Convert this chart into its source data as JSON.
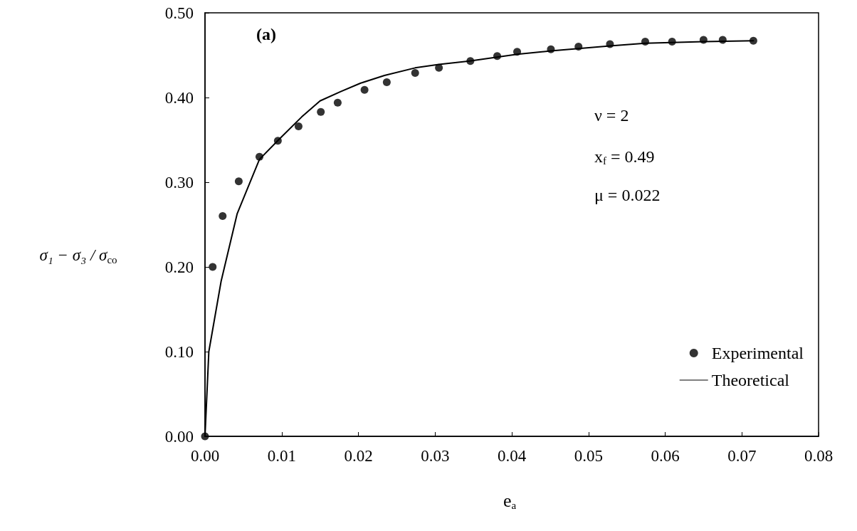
{
  "chart_data": {
    "type": "scatter",
    "xlabel": "e$_{a}$",
    "ylabel": "σ₁ − σ₃ / σ$_{co}$",
    "xlim": [
      0,
      0.08
    ],
    "xticks": [
      {
        "value": 0,
        "label": "0.00"
      },
      {
        "value": 0.01,
        "label": "0.01"
      },
      {
        "value": 0.02,
        "label": "0.02"
      },
      {
        "value": 0.03,
        "label": "0.03"
      },
      {
        "value": 0.04,
        "label": "0.04"
      },
      {
        "value": 0.05,
        "label": "0.05"
      },
      {
        "value": 0.06,
        "label": "0.06"
      },
      {
        "value": 0.07,
        "label": "0.07"
      },
      {
        "value": 0.08,
        "label": "0.08"
      }
    ],
    "ylim": [
      0,
      0.5
    ],
    "yticks": [
      {
        "value": 0,
        "label": "0.00"
      },
      {
        "value": 0.1,
        "label": "0.10"
      },
      {
        "value": 0.2,
        "label": "0.20"
      },
      {
        "value": 0.3,
        "label": "0.30"
      },
      {
        "value": 0.4,
        "label": "0.40"
      },
      {
        "value": 0.5,
        "label": "0.50"
      }
    ],
    "grid": false,
    "legend": "bottom right",
    "annotations": [
      "(a)",
      "ν = 2",
      "x$_{f}$ = 0.49",
      "μ = 0.022"
    ],
    "series": [
      {
        "name": "Experimental",
        "type": "scatter",
        "marker": "circle",
        "color": "#000000",
        "x": [
          0,
          0.001,
          0.0023,
          0.0044,
          0.0071,
          0.0095,
          0.0122,
          0.0151,
          0.0173,
          0.0208,
          0.0237,
          0.0274,
          0.0305,
          0.0346,
          0.0381,
          0.0407,
          0.0451,
          0.0487,
          0.0528,
          0.0574,
          0.0609,
          0.065,
          0.0675,
          0.0715
        ],
        "values": [
          0,
          0.2,
          0.26,
          0.301,
          0.33,
          0.349,
          0.366,
          0.383,
          0.394,
          0.409,
          0.418,
          0.429,
          0.435,
          0.443,
          0.449,
          0.454,
          0.457,
          0.46,
          0.463,
          0.466,
          0.466,
          0.468,
          0.468,
          0.467
        ]
      },
      {
        "name": "Theoretical",
        "type": "line",
        "marker": "none",
        "line_style": "solid",
        "color": "#000000",
        "x": [
          0,
          0.0005,
          0.0021,
          0.0042,
          0.0071,
          0.0097,
          0.0126,
          0.015,
          0.0177,
          0.0203,
          0.0234,
          0.0274,
          0.0305,
          0.0345,
          0.0407,
          0.0451,
          0.0528,
          0.0574,
          0.065,
          0.0715
        ],
        "values": [
          0,
          0.1,
          0.183,
          0.263,
          0.327,
          0.351,
          0.377,
          0.396,
          0.407,
          0.417,
          0.426,
          0.435,
          0.439,
          0.443,
          0.451,
          0.455,
          0.461,
          0.464,
          0.466,
          0.467
        ]
      }
    ]
  }
}
